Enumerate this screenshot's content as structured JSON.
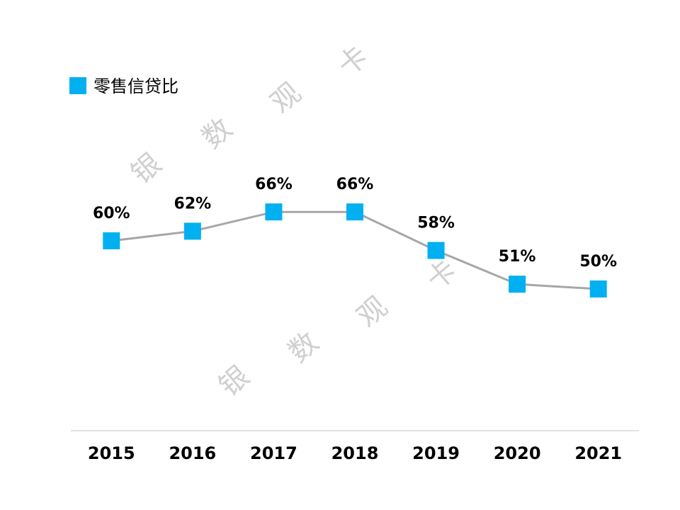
{
  "chart_data": {
    "type": "line",
    "legend": "零售信贷比",
    "categories": [
      "2015",
      "2016",
      "2017",
      "2018",
      "2019",
      "2020",
      "2021"
    ],
    "series": [
      {
        "name": "零售信贷比",
        "color": "#00b0f0",
        "line_color": "#a6a6a6",
        "values": [
          60,
          62,
          66,
          66,
          58,
          51,
          50
        ],
        "value_labels": [
          "60%",
          "62%",
          "66%",
          "66%",
          "58%",
          "51%",
          "50%"
        ]
      }
    ],
    "ylim": [
      20,
      80
    ],
    "watermark": [
      "银",
      "数",
      "观",
      "卡"
    ]
  }
}
